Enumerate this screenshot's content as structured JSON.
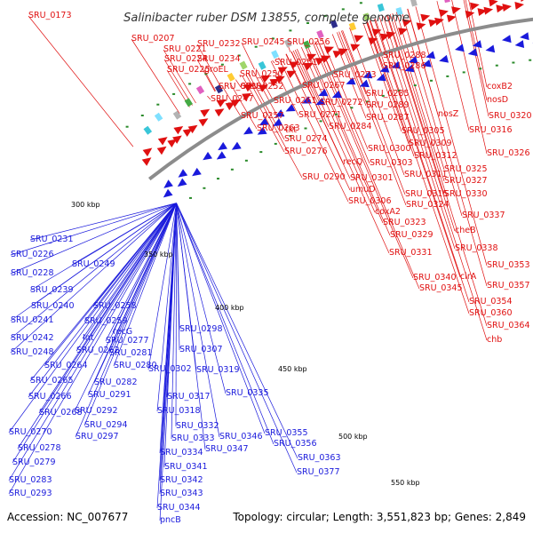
{
  "title": "Salinibacter ruber DSM 13855, complete genome",
  "accession": "Accession: NC_007677",
  "summary": "Topology: circular; Length: 3,551,823 bp; Genes: 2,849",
  "colors": {
    "forward": "#e01010",
    "reverse": "#1a1adc",
    "backbone": "#8c8c8c",
    "tick": "#2a8a2a"
  },
  "kbp_ticks": [
    "300 kbp",
    "350 kbp",
    "400 kbp",
    "450 kbp",
    "500 kbp",
    "550 kbp"
  ],
  "forward_labels": [
    "SRU_0173",
    "SRU_0207",
    "SRU_0221",
    "SRU_0232",
    "SRU_0245",
    "SRU_0256",
    "SRU_0224",
    "SRU_0234",
    "SRU_0225",
    "groEL",
    "SRU_0251",
    "SRU_0250",
    "SRU_0238",
    "SRU_0252",
    "SRU_0247",
    "SRU_0261",
    "SRU_0267",
    "SRU_0273",
    "SRU_0288",
    "SRU_0286",
    "coxB2",
    "SRU_0257",
    "SRU_0272",
    "SRU_0285",
    "nosD",
    "SRU_0263",
    "tkt",
    "SRU_0271",
    "SRU_0289",
    "SRU_0287",
    "nosZ",
    "SRU_0320",
    "SRU_0284",
    "SRU_0305",
    "SRU_0316",
    "SRU_0274",
    "SRU_0309",
    "SRU_0276",
    "SRU_0300",
    "SRU_0312",
    "SRU_0326",
    "recQ",
    "SRU_0303",
    "SRU_0311",
    "SRU_0325",
    "SRU_0290",
    "SRU_0301",
    "SRU_0327",
    "umuD",
    "SRU_0315",
    "SRU_0330",
    "SRU_0306",
    "SRU_0324",
    "coxA2",
    "SRU_0337",
    "SRU_0323",
    "cheB",
    "SRU_0329",
    "SRU_0338",
    "SRU_0331",
    "SRU_0353",
    "SRU_0340",
    "cirA",
    "SRU_0345",
    "SRU_0357",
    "SRU_0354",
    "SRU_0360",
    "SRU_0364",
    "chb"
  ],
  "reverse_labels": [
    "SRU_0231",
    "SRU_0226",
    "SRU_0249",
    "SRU_0228",
    "SRU_0239",
    "SRU_0240",
    "SRU_0258",
    "SRU_0241",
    "SRU_0259",
    "SRU_0242",
    "Int",
    "recG",
    "SRU_0298",
    "SRU_0248",
    "SRU_0262",
    "SRU_0277",
    "SRU_0281",
    "SRU_0264",
    "SRU_0280",
    "SRU_0307",
    "SRU_0302",
    "SRU_0265",
    "SRU_0282",
    "SRU_0319",
    "SRU_0266",
    "SRU_0291",
    "SRU_0317",
    "SRU_0335",
    "SRU_0268",
    "SRU_0292",
    "SRU_0318",
    "SRU_0294",
    "SRU_0332",
    "SRU_0270",
    "SRU_0297",
    "SRU_0333",
    "SRU_0346",
    "SRU_0355",
    "SRU_0278",
    "SRU_0334",
    "SRU_0347",
    "SRU_0356",
    "SRU_0279",
    "SRU_0363",
    "SRU_0341",
    "SRU_0377",
    "SRU_0283",
    "SRU_0342",
    "SRU_0293",
    "SRU_0343",
    "SRU_0344",
    "pncB"
  ]
}
